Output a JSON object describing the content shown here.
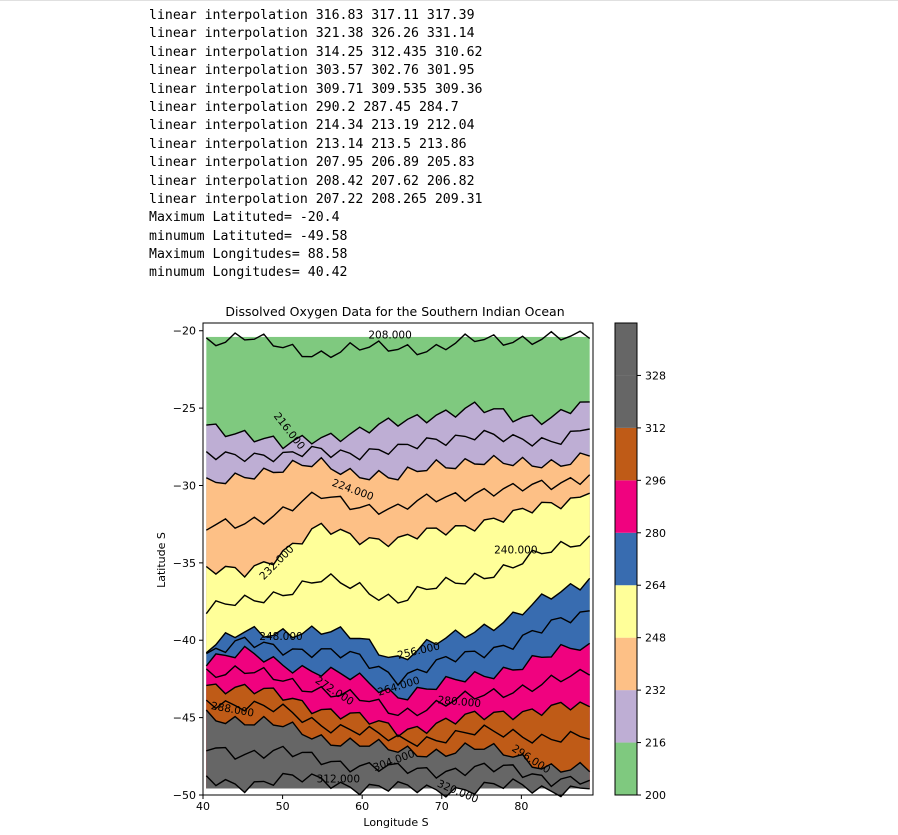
{
  "output_lines": [
    "linear interpolation 316.83 317.11 317.39",
    "linear interpolation 321.38 326.26 331.14",
    "linear interpolation 314.25 312.435 310.62",
    "linear interpolation 303.57 302.76 301.95",
    "linear interpolation 309.71 309.535 309.36",
    "linear interpolation 290.2 287.45 284.7",
    "linear interpolation 214.34 213.19 212.04",
    "linear interpolation 213.14 213.5 213.86",
    "linear interpolation 207.95 206.89 205.83",
    "linear interpolation 208.42 207.62 206.82",
    "linear interpolation 207.22 208.265 209.31",
    "Maximum Latituted= -20.4",
    "minumum Latituted= -49.58",
    "Maximum Longitudes= 88.58",
    "minumum Longitudes= 40.42"
  ],
  "chart_data": {
    "type": "contourf",
    "title": "Dissolved Oxygen Data for the Southern Indian Ocean",
    "xlabel": "Longitude S",
    "ylabel": "Latitude S",
    "xlim": [
      40,
      89
    ],
    "ylim": [
      -50,
      -19.5
    ],
    "xticks": [
      40,
      50,
      60,
      70,
      80
    ],
    "yticks": [
      -20,
      -25,
      -30,
      -35,
      -40,
      -45,
      -50
    ],
    "data_extent": {
      "lon": [
        40.42,
        88.58
      ],
      "lat": [
        -49.58,
        -20.4
      ]
    },
    "colormap": "Accent",
    "levels": [
      200,
      216,
      232,
      248,
      264,
      280,
      296,
      312,
      328,
      344
    ],
    "level_colors": [
      "#7fc97f",
      "#beaed4",
      "#fdc086",
      "#ffff99",
      "#386cb0",
      "#f0027f",
      "#bf5b17",
      "#666666",
      "#666666"
    ],
    "colorbar": {
      "ticks": [
        200,
        216,
        232,
        248,
        264,
        280,
        296,
        312,
        328
      ]
    },
    "bands": [
      {
        "level": 216,
        "y": [
          -26.1,
          -26.6,
          -27.5,
          -26.8,
          -26.5,
          -26.0,
          -25.3,
          -25.0,
          -25.6,
          -25.5,
          -24.6
        ]
      },
      {
        "level": 232,
        "y": [
          -30.0,
          -29.2,
          -29.0,
          -28.6,
          -29.2,
          -29.6,
          -28.6,
          -28.4,
          -28.7,
          -28.5,
          -28.1
        ]
      },
      {
        "level": 248,
        "y": [
          -35.6,
          -35.5,
          -34.3,
          -32.8,
          -33.3,
          -33.6,
          -33.0,
          -32.4,
          -32.0,
          -31.2,
          -30.5
        ]
      },
      {
        "level": 264,
        "y": [
          -40.6,
          -39.5,
          -39.4,
          -39.5,
          -39.8,
          -41.2,
          -40.2,
          -39.3,
          -38.5,
          -37.2,
          -36.0
        ]
      },
      {
        "level": 280,
        "y": [
          -41.2,
          -40.9,
          -41.5,
          -42.0,
          -42.6,
          -43.5,
          -43.0,
          -42.4,
          -41.7,
          -41.0,
          -40.2
        ]
      },
      {
        "level": 296,
        "y": [
          -42.8,
          -43.2,
          -43.6,
          -44.4,
          -45.1,
          -45.8,
          -45.4,
          -45.0,
          -44.6,
          -44.4,
          -44.3
        ]
      },
      {
        "level": 312,
        "y": [
          -44.8,
          -45.2,
          -45.6,
          -46.3,
          -46.7,
          -47.2,
          -47.2,
          -47.0,
          -47.4,
          -48.2,
          -48.5
        ]
      },
      {
        "level": 328,
        "y": [
          -49.0,
          -49.3,
          -49.0,
          -49.0,
          -49.5,
          -49.6,
          -49.6,
          -49.6,
          -49.4,
          -49.6,
          -49.6
        ]
      }
    ],
    "contour_labels": [
      {
        "text": "208.000",
        "x": 63.5,
        "y": -20.3,
        "rotation": 0
      },
      {
        "text": "216.000",
        "x": 50.8,
        "y": -26.5,
        "rotation": 52
      },
      {
        "text": "224.000",
        "x": 58.8,
        "y": -30.3,
        "rotation": 20
      },
      {
        "text": "232.000",
        "x": 49.3,
        "y": -35.0,
        "rotation": -45
      },
      {
        "text": "240.000",
        "x": 79.3,
        "y": -34.2,
        "rotation": 0
      },
      {
        "text": "248.000",
        "x": 49.8,
        "y": -39.8,
        "rotation": 0
      },
      {
        "text": "256.000",
        "x": 67.1,
        "y": -40.7,
        "rotation": -13
      },
      {
        "text": "272.000",
        "x": 56.5,
        "y": -43.3,
        "rotation": 33
      },
      {
        "text": "264.000",
        "x": 64.6,
        "y": -43.0,
        "rotation": -17
      },
      {
        "text": "280.000",
        "x": 72.2,
        "y": -44.0,
        "rotation": 5
      },
      {
        "text": "288.000",
        "x": 43.7,
        "y": -44.5,
        "rotation": 10
      },
      {
        "text": "304.000",
        "x": 64.0,
        "y": -47.8,
        "rotation": -20
      },
      {
        "text": "296.000",
        "x": 81.2,
        "y": -47.7,
        "rotation": 33
      },
      {
        "text": "312.000",
        "x": 57.0,
        "y": -49.0,
        "rotation": 0
      },
      {
        "text": "320.000",
        "x": 72.0,
        "y": -49.8,
        "rotation": 23
      }
    ]
  }
}
